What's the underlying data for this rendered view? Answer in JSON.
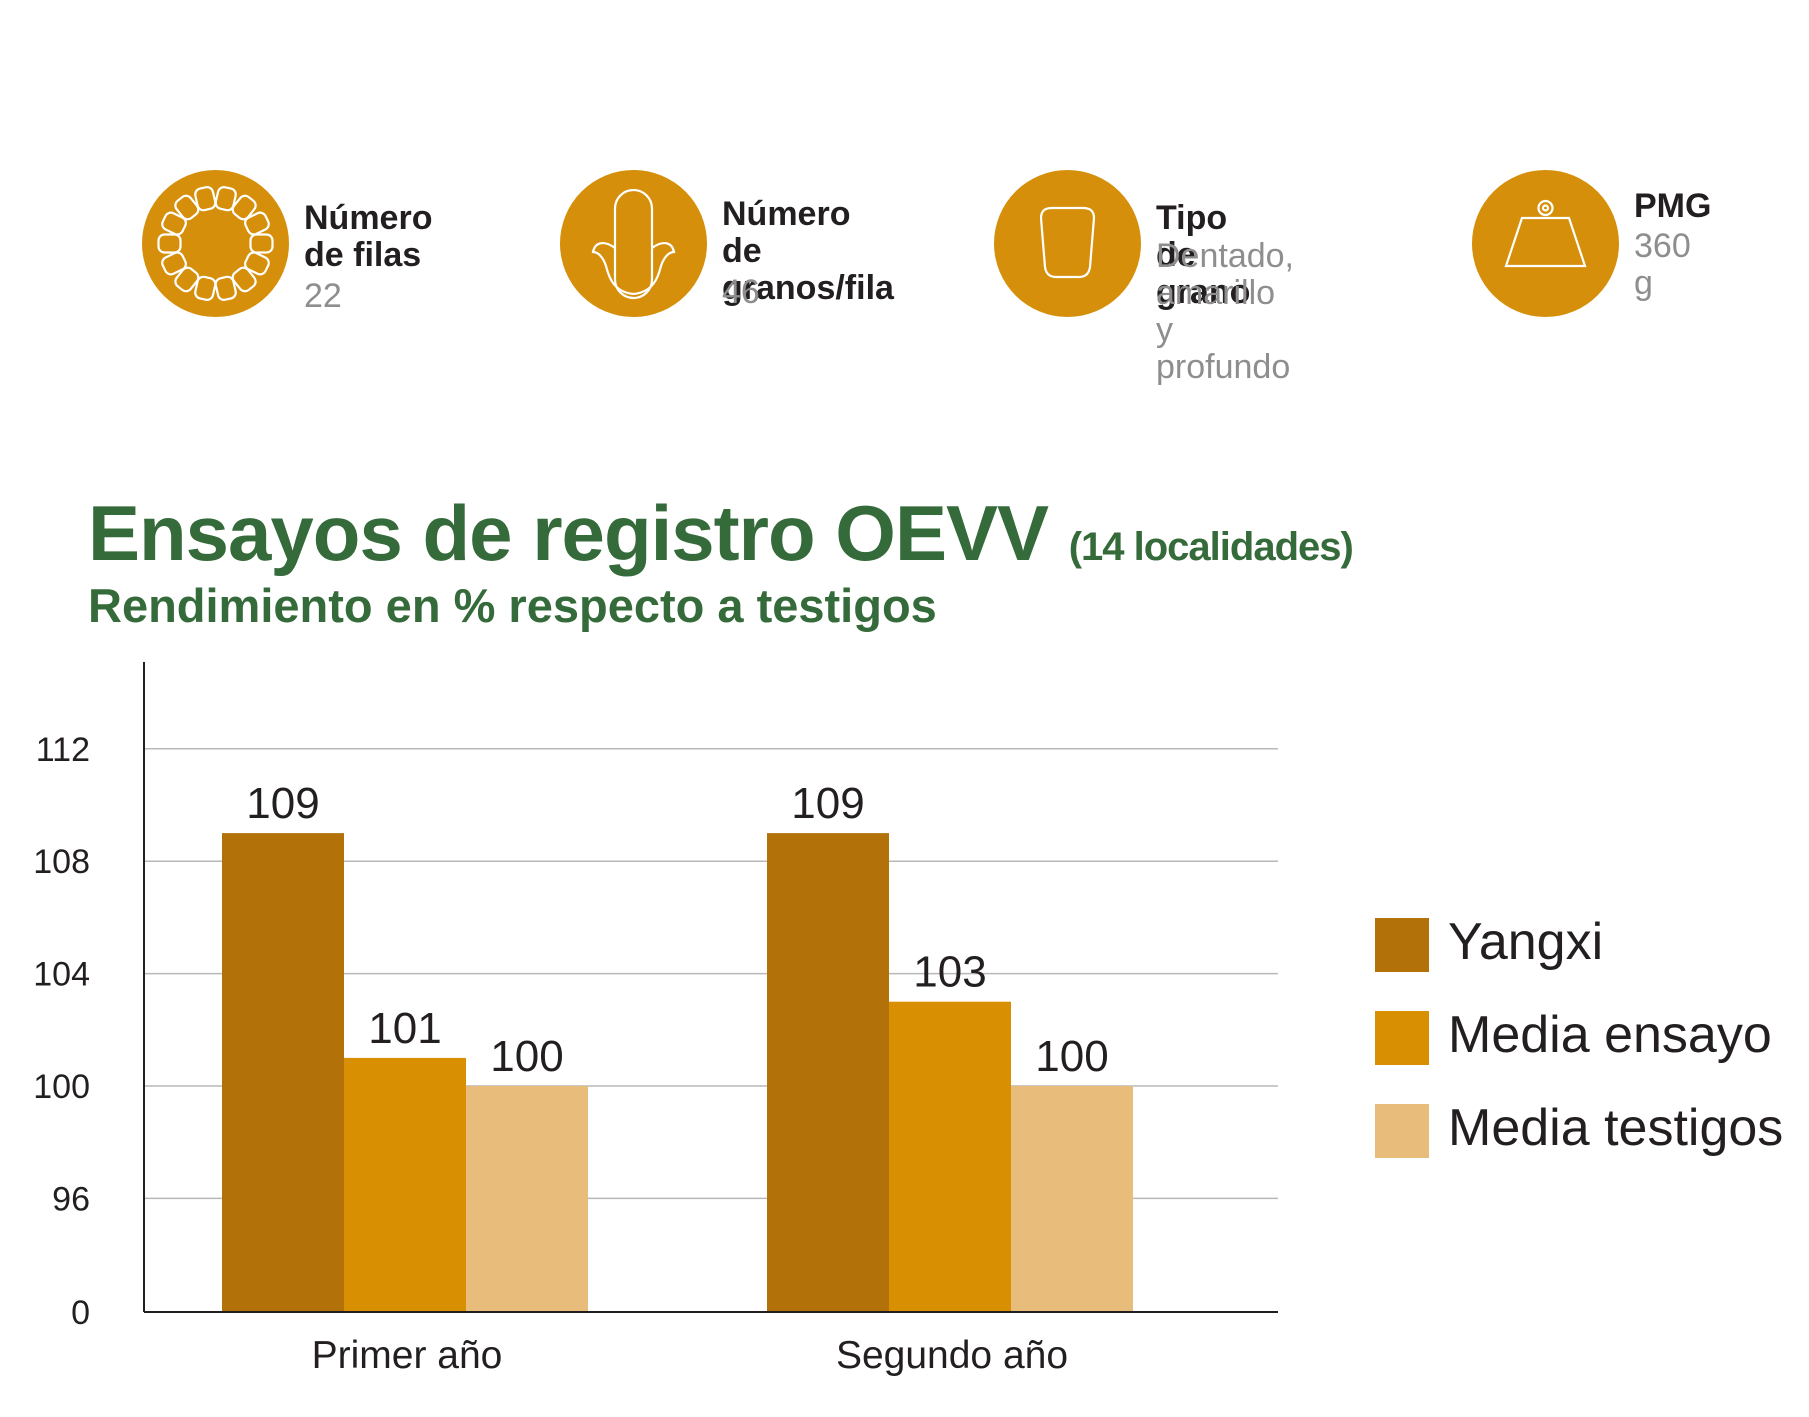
{
  "stats": [
    {
      "label": "Número\nde filas",
      "value": "22",
      "icon": "kernel-rows-icon"
    },
    {
      "label": "Número de\ngranos/fila",
      "value": "46",
      "icon": "corn-cob-icon"
    },
    {
      "label": "Tipo de grano",
      "value": "Dentado,\namarillo\ny profundo",
      "icon": "grain-icon"
    },
    {
      "label": "PMG",
      "value": "360 g",
      "icon": "weight-icon"
    }
  ],
  "colors": {
    "icon_circle": "#d58f0a",
    "title_green": "#356b3a",
    "yangxi": "#b37209",
    "media_ensayo": "#d88f02",
    "media_testigos": "#e8bd7b"
  },
  "chart_data": {
    "type": "bar",
    "title": "Ensayos de registro OEVV",
    "title_note": "(14 localidades)",
    "subtitle": "Rendimiento en % respecto a testigos",
    "categories": [
      "Primer año",
      "Segundo año"
    ],
    "series": [
      {
        "name": "Yangxi",
        "values": [
          109,
          109
        ],
        "color": "#b37209"
      },
      {
        "name": "Media ensayo",
        "values": [
          101,
          103
        ],
        "color": "#d88f02"
      },
      {
        "name": "Media testigos",
        "values": [
          100,
          100
        ],
        "color": "#e8bd7b"
      }
    ],
    "yticks": [
      "112",
      "108",
      "104",
      "100",
      "96",
      "0"
    ],
    "ylim": [
      92,
      115
    ],
    "axis_break": "0",
    "grid": true,
    "legend": "right"
  }
}
